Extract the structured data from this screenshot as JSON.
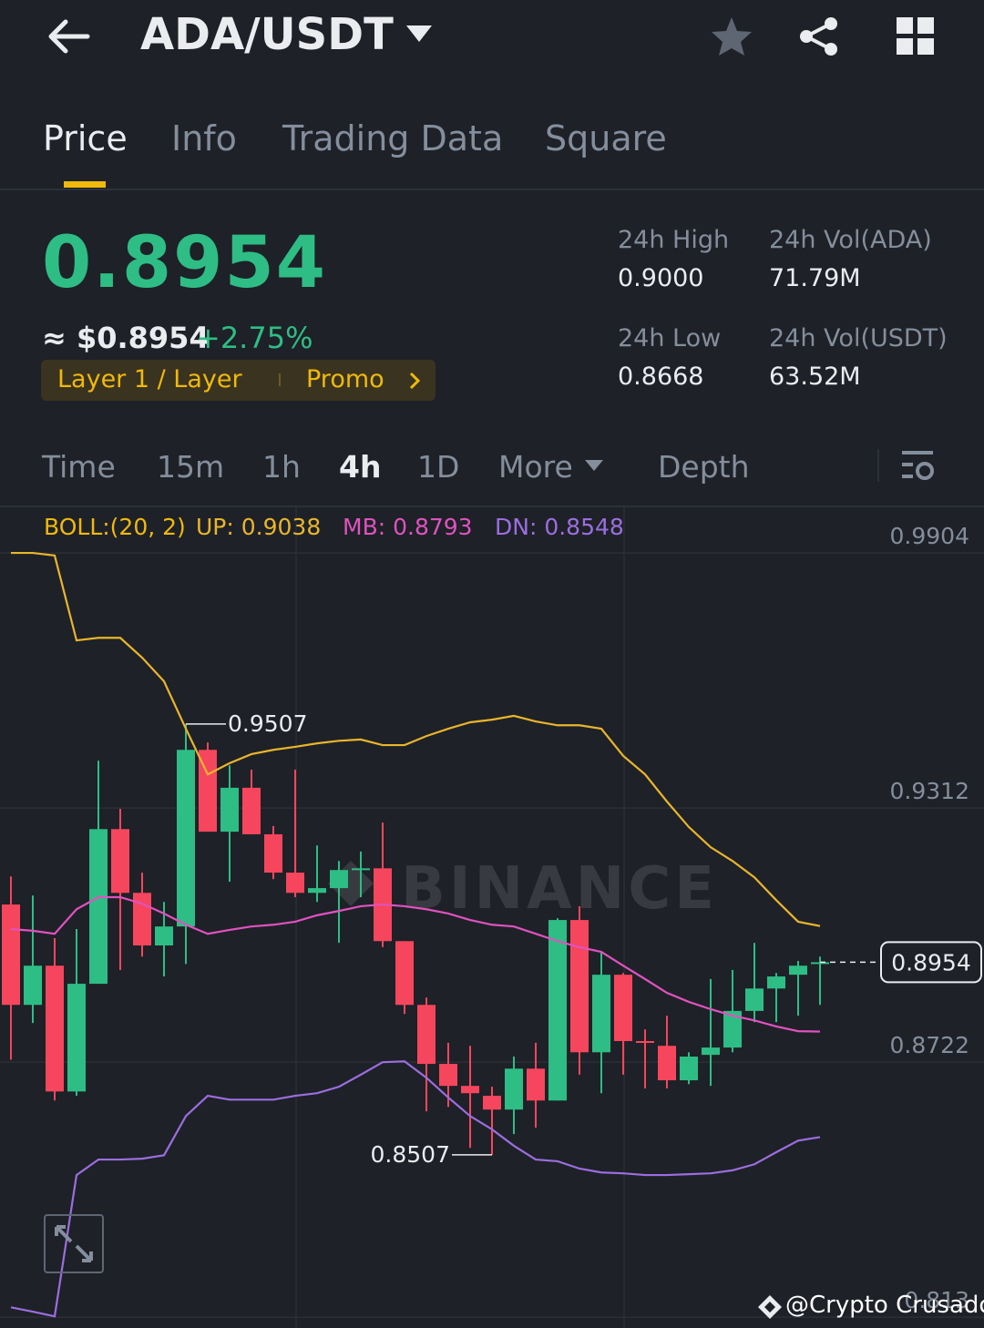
{
  "header": {
    "title": "ADA/USDT"
  },
  "tabs": [
    "Price",
    "Info",
    "Trading Data",
    "Square"
  ],
  "ticker": {
    "last": "0.8954",
    "fiat": "≈ $0.8954",
    "change": "+2.75%"
  },
  "tags": [
    "Layer 1 / Layer",
    "Promo"
  ],
  "stats": [
    {
      "label": "24h High",
      "value": "0.9000"
    },
    {
      "label": "24h Vol(ADA)",
      "value": "71.79M"
    },
    {
      "label": "24h Low",
      "value": "0.8668"
    },
    {
      "label": "24h Vol(USDT)",
      "value": "63.52M"
    }
  ],
  "intervals": [
    "Time",
    "15m",
    "1h",
    "4h",
    "1D",
    "More",
    "Depth"
  ],
  "watermark": "BINANCE",
  "footer": "@Crypto Crusador",
  "chart_data": {
    "type": "candlestick",
    "indicator": "BOLL:(20, 2)",
    "up_color": "#2ebd85",
    "down_color": "#f6465d",
    "ylim": [
      0.8105,
      1.0012
    ],
    "yticks": [
      0.9904,
      0.9312,
      0.8722,
      0.813
    ],
    "grid": true,
    "candles": {
      "open": [
        0.9088,
        0.8855,
        0.8946,
        0.8654,
        0.8904,
        0.9263,
        0.9115,
        0.8993,
        0.9037,
        0.9447,
        0.9257,
        0.9359,
        0.9251,
        0.9162,
        0.9115,
        0.9126,
        0.9168,
        0.9172,
        0.9003,
        0.8855,
        0.8718,
        0.8667,
        0.8644,
        0.8612,
        0.8707,
        0.8633,
        0.9052,
        0.8745,
        0.8925,
        0.8771,
        0.876,
        0.868,
        0.8739,
        0.8756,
        0.8841,
        0.8893,
        0.8925,
        0.895
      ],
      "high": [
        0.9153,
        0.9109,
        0.901,
        0.9031,
        0.9422,
        0.931,
        0.9162,
        0.9094,
        0.9507,
        0.9464,
        0.9411,
        0.9401,
        0.927,
        0.9401,
        0.9225,
        0.9189,
        0.9211,
        0.9278,
        0.9003,
        0.8872,
        0.8767,
        0.876,
        0.8665,
        0.8735,
        0.8767,
        0.9056,
        0.9084,
        0.8978,
        0.8929,
        0.8798,
        0.883,
        0.8745,
        0.8915,
        0.8936,
        0.8999,
        0.8929,
        0.8957,
        0.8967
      ],
      "low": [
        0.8728,
        0.8813,
        0.8633,
        0.8644,
        0.8904,
        0.8936,
        0.8967,
        0.8921,
        0.895,
        0.9257,
        0.9141,
        0.9251,
        0.9147,
        0.9105,
        0.9094,
        0.8999,
        0.9105,
        0.8989,
        0.8834,
        0.8608,
        0.8618,
        0.8523,
        0.8507,
        0.8555,
        0.857,
        0.8633,
        0.8693,
        0.865,
        0.8693,
        0.8661,
        0.8661,
        0.8671,
        0.8667,
        0.8745,
        0.8815,
        0.8815,
        0.883,
        0.8855
      ],
      "close": [
        0.8855,
        0.8946,
        0.8654,
        0.8904,
        0.9263,
        0.9115,
        0.8993,
        0.9037,
        0.9447,
        0.9257,
        0.9359,
        0.9251,
        0.9162,
        0.9115,
        0.9126,
        0.9168,
        0.9172,
        0.9003,
        0.8855,
        0.8718,
        0.8667,
        0.865,
        0.8612,
        0.8707,
        0.8633,
        0.9052,
        0.8745,
        0.8925,
        0.8771,
        0.8767,
        0.868,
        0.8735,
        0.8756,
        0.8841,
        0.8893,
        0.8921,
        0.8946,
        0.8954
      ]
    },
    "series": [
      {
        "name": "UP: 0.9038",
        "color": "#e9b52c",
        "values": [
          0.9904,
          0.9904,
          0.9898,
          0.9701,
          0.9707,
          0.9707,
          0.9661,
          0.9606,
          0.9496,
          0.939,
          0.9416,
          0.9437,
          0.9447,
          0.9454,
          0.9462,
          0.9468,
          0.9471,
          0.9458,
          0.9458,
          0.9479,
          0.9496,
          0.9511,
          0.9517,
          0.9526,
          0.9513,
          0.9504,
          0.9504,
          0.9496,
          0.9433,
          0.939,
          0.9327,
          0.9268,
          0.9221,
          0.9189,
          0.9151,
          0.9098,
          0.9048,
          0.9038
        ]
      },
      {
        "name": "MB: 0.8793",
        "color": "#e052c0",
        "values": [
          0.9031,
          0.9027,
          0.902,
          0.9077,
          0.9105,
          0.9105,
          0.909,
          0.9067,
          0.9041,
          0.902,
          0.9029,
          0.9037,
          0.9041,
          0.9048,
          0.9063,
          0.9073,
          0.9084,
          0.9088,
          0.9084,
          0.9077,
          0.9067,
          0.9052,
          0.9041,
          0.9037,
          0.902,
          0.9003,
          0.8989,
          0.8978,
          0.8946,
          0.8915,
          0.8883,
          0.8862,
          0.8845,
          0.883,
          0.8819,
          0.8805,
          0.8794,
          0.8793
        ]
      },
      {
        "name": "DN: 0.8548",
        "color": "#9b6ee0",
        "values": [
          0.8153,
          0.8143,
          0.8132,
          0.846,
          0.8496,
          0.8496,
          0.8498,
          0.8506,
          0.8597,
          0.8644,
          0.8635,
          0.8635,
          0.8635,
          0.8644,
          0.865,
          0.8665,
          0.8693,
          0.8722,
          0.8724,
          0.8686,
          0.864,
          0.8597,
          0.8566,
          0.8528,
          0.8496,
          0.8492,
          0.8475,
          0.8466,
          0.8464,
          0.846,
          0.846,
          0.8462,
          0.8464,
          0.8471,
          0.8485,
          0.8513,
          0.854,
          0.8548
        ]
      }
    ]
  }
}
